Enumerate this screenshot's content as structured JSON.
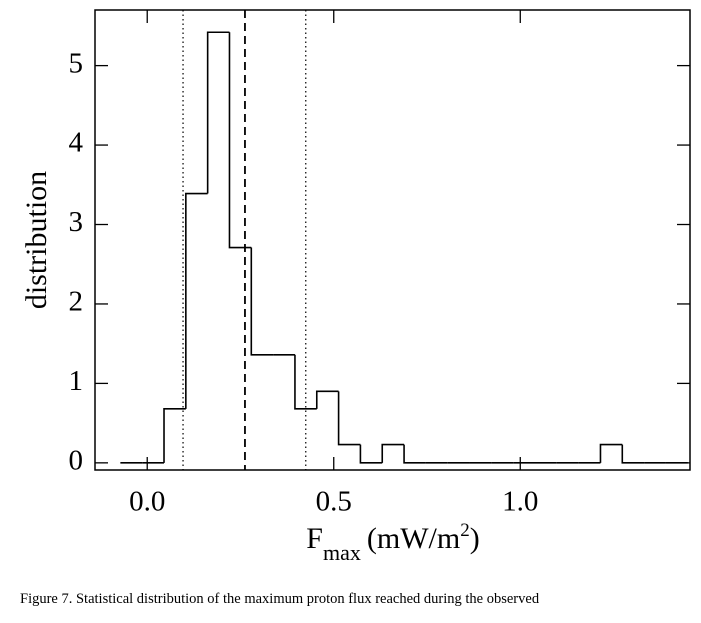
{
  "chart_data": {
    "type": "histogram",
    "ylabel": "distribution",
    "xlabel": {
      "main": "F",
      "sub": "max",
      "unit": "(mW/m",
      "sup": "2",
      "close": ")"
    },
    "bins": [
      -0.072,
      -0.0135,
      0.045,
      0.1035,
      0.162,
      0.2205,
      0.279,
      0.3375,
      0.396,
      0.4545,
      0.513,
      0.5715,
      0.63,
      0.6885,
      0.747,
      0.8055,
      0.864,
      0.9225,
      0.981,
      1.0395,
      1.098,
      1.1565,
      1.215,
      1.2735,
      1.332,
      1.3905,
      1.449
    ],
    "values": [
      0,
      0,
      0.68,
      3.39,
      5.42,
      2.71,
      1.36,
      1.36,
      0.68,
      0.9,
      0.23,
      0,
      0.23,
      0,
      0,
      0,
      0,
      0,
      0,
      0,
      0,
      0,
      0.23,
      0,
      0,
      0
    ],
    "color": "#000000",
    "reference_lines": [
      {
        "value": 0.096,
        "style": "dotted"
      },
      {
        "value": 0.262,
        "style": "dashed"
      },
      {
        "value": 0.425,
        "style": "dotted"
      }
    ],
    "xlim": [
      -0.14,
      1.455
    ],
    "ylim": [
      -0.09,
      5.7
    ],
    "xticks": [
      {
        "value": 0,
        "label": "0.0"
      },
      {
        "value": 0.5,
        "label": "0.5"
      },
      {
        "value": 1,
        "label": "1.0"
      }
    ],
    "yticks": [
      0,
      1,
      2,
      3,
      4,
      5
    ],
    "grid": false
  },
  "caption": "Figure 7.  Statistical distribution of the maximum proton flux reached during the observed"
}
